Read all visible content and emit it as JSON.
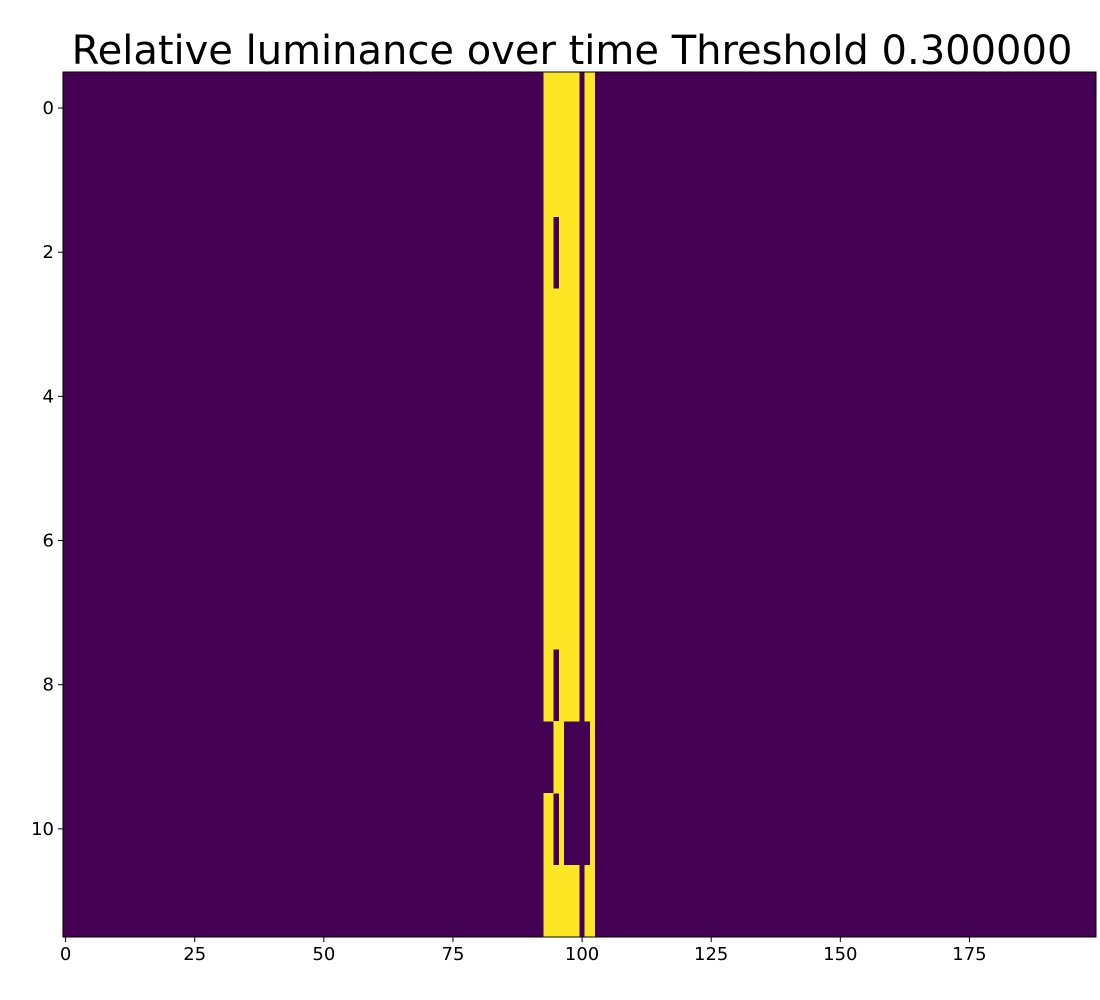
{
  "chart_data": {
    "type": "heatmap",
    "title": "Relative luminance over time Threshold 0.300000",
    "xlabel": "",
    "ylabel": "",
    "n_cols": 200,
    "n_rows": 12,
    "x_ticks": [
      0,
      25,
      50,
      75,
      100,
      125,
      150,
      175
    ],
    "y_ticks": [
      0,
      2,
      4,
      6,
      8,
      10
    ],
    "xlim": [
      -0.5,
      199.5
    ],
    "ylim": [
      11.5,
      -0.5
    ],
    "grid": false,
    "legend": "none",
    "colormap": "viridis",
    "background_value": 0,
    "value_colors": {
      "0": "#440154",
      "1": "#fde725"
    },
    "above_threshold_cells": [
      {
        "row": 0,
        "cols": [
          [
            93,
            99
          ],
          [
            101,
            102
          ]
        ]
      },
      {
        "row": 1,
        "cols": [
          [
            93,
            99
          ],
          [
            101,
            102
          ]
        ]
      },
      {
        "row": 2,
        "cols": [
          [
            93,
            94
          ],
          [
            96,
            99
          ],
          [
            101,
            102
          ]
        ]
      },
      {
        "row": 3,
        "cols": [
          [
            93,
            99
          ],
          [
            101,
            102
          ]
        ]
      },
      {
        "row": 4,
        "cols": [
          [
            93,
            99
          ],
          [
            101,
            102
          ]
        ]
      },
      {
        "row": 5,
        "cols": [
          [
            93,
            99
          ],
          [
            101,
            102
          ]
        ]
      },
      {
        "row": 6,
        "cols": [
          [
            93,
            99
          ],
          [
            101,
            102
          ]
        ]
      },
      {
        "row": 7,
        "cols": [
          [
            93,
            99
          ],
          [
            101,
            102
          ]
        ]
      },
      {
        "row": 8,
        "cols": [
          [
            93,
            94
          ],
          [
            96,
            99
          ],
          [
            101,
            102
          ]
        ]
      },
      {
        "row": 9,
        "cols": [
          [
            95,
            96
          ],
          [
            102,
            102
          ]
        ]
      },
      {
        "row": 10,
        "cols": [
          [
            93,
            94
          ],
          [
            96,
            96
          ],
          [
            102,
            102
          ]
        ]
      },
      {
        "row": 11,
        "cols": [
          [
            93,
            99
          ],
          [
            101,
            102
          ]
        ]
      }
    ]
  }
}
